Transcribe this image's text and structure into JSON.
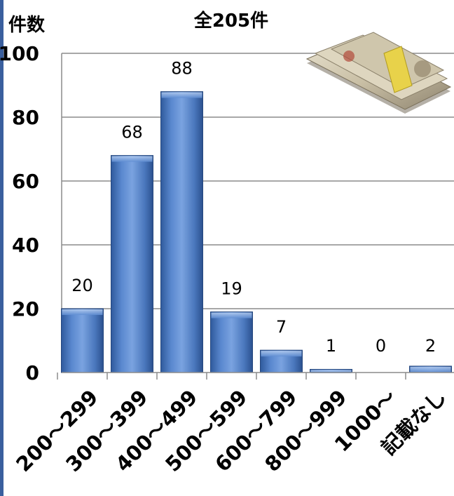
{
  "chart_data": {
    "type": "bar",
    "title": "全205件",
    "ylabel": "件数",
    "xlabel": "",
    "categories": [
      "200～299",
      "300～399",
      "400～499",
      "500～599",
      "600～799",
      "800～999",
      "1000～",
      "記載なし"
    ],
    "values": [
      20,
      68,
      88,
      19,
      7,
      1,
      0,
      2
    ],
    "value_labels": [
      "20",
      "68",
      "88",
      "19",
      "7",
      "1",
      "0",
      "2"
    ],
    "ylim": [
      0,
      100
    ],
    "yticks": [
      "0",
      "20",
      "40",
      "60",
      "80",
      "100"
    ],
    "grid": true,
    "bar_color": "#4f7ec5",
    "decoration": "banknote-bundles-image"
  }
}
